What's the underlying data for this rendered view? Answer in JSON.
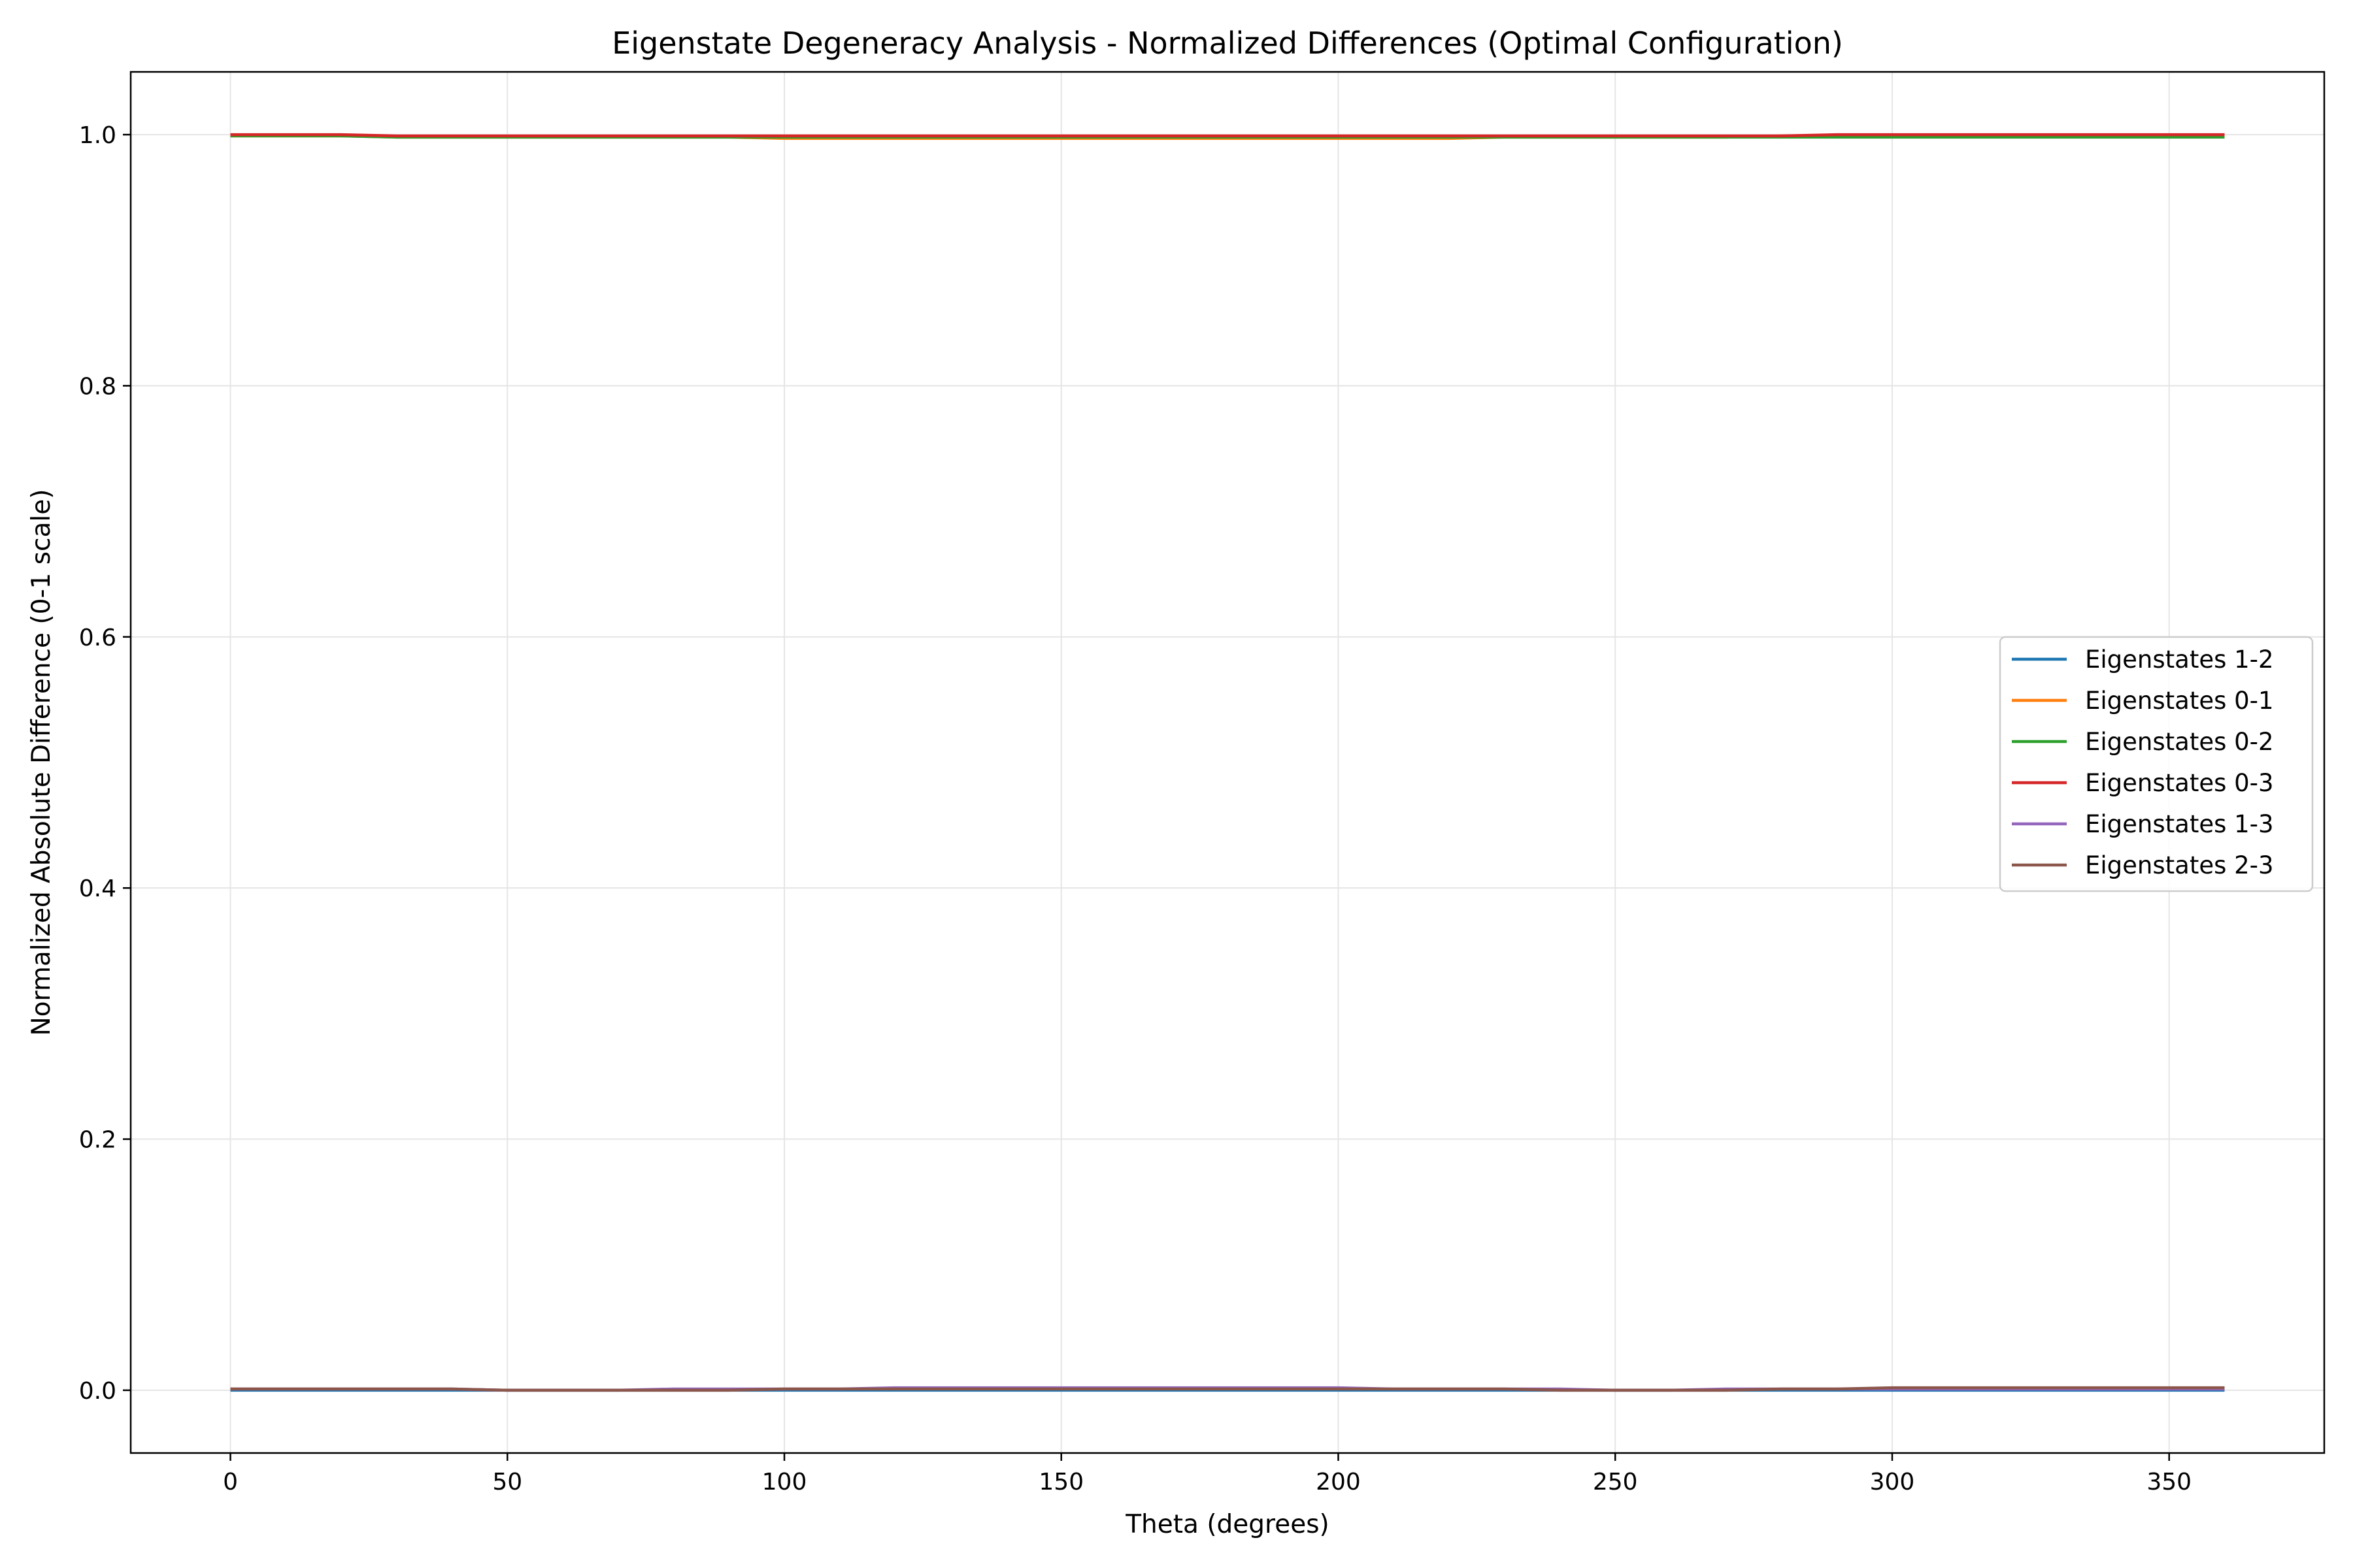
{
  "chart_data": {
    "type": "line",
    "title": "Eigenstate Degeneracy Analysis - Normalized Differences (Optimal Configuration)",
    "xlabel": "Theta (degrees)",
    "ylabel": "Normalized Absolute Difference (0-1 scale)",
    "xlim": [
      -18,
      378
    ],
    "ylim": [
      -0.05,
      1.05
    ],
    "xticks": [
      0,
      50,
      100,
      150,
      200,
      250,
      300,
      350
    ],
    "yticks": [
      0.0,
      0.2,
      0.4,
      0.6,
      0.8,
      1.0
    ],
    "ytick_labels": [
      "0.0",
      "0.2",
      "0.4",
      "0.6",
      "0.8",
      "1.0"
    ],
    "grid": true,
    "legend_position": "center-right",
    "x": [
      0,
      10,
      20,
      30,
      40,
      50,
      60,
      70,
      80,
      90,
      100,
      110,
      120,
      130,
      140,
      150,
      160,
      170,
      180,
      190,
      200,
      210,
      220,
      230,
      240,
      250,
      260,
      270,
      280,
      290,
      300,
      310,
      320,
      330,
      340,
      350,
      360
    ],
    "series": [
      {
        "name": "Eigenstates 1-2",
        "color": "#1f77b4",
        "values": [
          0.0,
          0.0,
          0.0,
          0.0,
          0.0,
          0.0,
          0.0,
          0.0,
          0.0,
          0.0,
          0.0,
          0.0,
          0.0,
          0.0,
          0.0,
          0.0,
          0.0,
          0.0,
          0.0,
          0.0,
          0.0,
          0.0,
          0.0,
          0.0,
          0.0,
          0.0,
          0.0,
          0.0,
          0.0,
          0.0,
          0.0,
          0.0,
          0.0,
          0.0,
          0.0,
          0.0,
          0.0
        ]
      },
      {
        "name": "Eigenstates 0-1",
        "color": "#ff7f0e",
        "values": [
          0.999,
          0.999,
          0.999,
          0.998,
          0.998,
          0.998,
          0.998,
          0.998,
          0.998,
          0.998,
          0.997,
          0.997,
          0.997,
          0.997,
          0.997,
          0.997,
          0.997,
          0.997,
          0.997,
          0.997,
          0.997,
          0.997,
          0.997,
          0.998,
          0.998,
          0.998,
          0.998,
          0.998,
          0.999,
          0.999,
          0.999,
          0.999,
          0.999,
          0.999,
          0.999,
          0.999,
          0.999
        ]
      },
      {
        "name": "Eigenstates 0-2",
        "color": "#2ca02c",
        "values": [
          0.999,
          0.999,
          0.999,
          0.998,
          0.998,
          0.998,
          0.998,
          0.998,
          0.998,
          0.998,
          0.998,
          0.998,
          0.998,
          0.998,
          0.998,
          0.998,
          0.998,
          0.998,
          0.998,
          0.998,
          0.998,
          0.998,
          0.998,
          0.998,
          0.998,
          0.998,
          0.998,
          0.998,
          0.998,
          0.998,
          0.998,
          0.998,
          0.998,
          0.998,
          0.998,
          0.998,
          0.998
        ]
      },
      {
        "name": "Eigenstates 0-3",
        "color": "#d62728",
        "values": [
          1.0,
          1.0,
          1.0,
          0.999,
          0.999,
          0.999,
          0.999,
          0.999,
          0.999,
          0.999,
          0.999,
          0.999,
          0.999,
          0.999,
          0.999,
          0.999,
          0.999,
          0.999,
          0.999,
          0.999,
          0.999,
          0.999,
          0.999,
          0.999,
          0.999,
          0.999,
          0.999,
          0.999,
          0.999,
          1.0,
          1.0,
          1.0,
          1.0,
          1.0,
          1.0,
          1.0,
          1.0
        ]
      },
      {
        "name": "Eigenstates 1-3",
        "color": "#9467bd",
        "values": [
          0.001,
          0.001,
          0.001,
          0.001,
          0.001,
          0.0,
          0.0,
          0.0,
          0.001,
          0.001,
          0.001,
          0.001,
          0.002,
          0.002,
          0.002,
          0.002,
          0.002,
          0.002,
          0.002,
          0.002,
          0.002,
          0.001,
          0.001,
          0.001,
          0.001,
          0.0,
          0.0,
          0.001,
          0.001,
          0.001,
          0.001,
          0.001,
          0.001,
          0.001,
          0.001,
          0.001,
          0.001
        ]
      },
      {
        "name": "Eigenstates 2-3",
        "color": "#8c564b",
        "values": [
          0.001,
          0.001,
          0.001,
          0.001,
          0.001,
          0.0,
          0.0,
          0.0,
          0.0,
          0.0,
          0.001,
          0.001,
          0.001,
          0.001,
          0.001,
          0.001,
          0.001,
          0.001,
          0.001,
          0.001,
          0.001,
          0.001,
          0.001,
          0.001,
          0.0,
          0.0,
          0.0,
          0.0,
          0.001,
          0.001,
          0.002,
          0.002,
          0.002,
          0.002,
          0.002,
          0.002,
          0.002
        ]
      }
    ]
  }
}
